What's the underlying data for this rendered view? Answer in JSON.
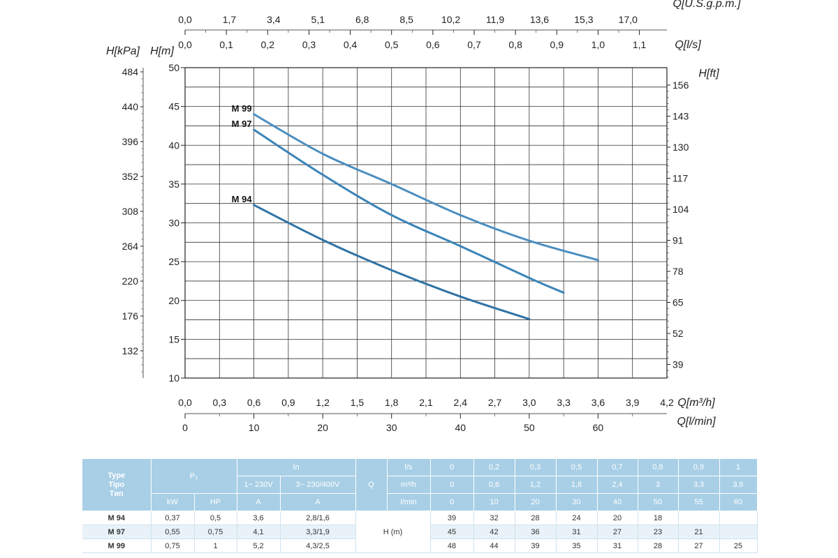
{
  "chart_data": {
    "type": "line",
    "title": "",
    "series": [
      {
        "name": "M 99",
        "x": [
          0.6,
          1.2,
          1.8,
          2.4,
          3.0,
          3.6
        ],
        "values": [
          44.0,
          38.9,
          35.0,
          31.0,
          27.7,
          25.2
        ]
      },
      {
        "name": "M 97",
        "x": [
          0.6,
          1.2,
          1.8,
          2.4,
          3.0,
          3.3
        ],
        "values": [
          42.0,
          36.2,
          31.0,
          27.0,
          22.9,
          21.0
        ]
      },
      {
        "name": "M 94",
        "x": [
          0.6,
          1.2,
          1.8,
          2.4,
          3.0
        ],
        "values": [
          32.3,
          27.8,
          23.9,
          20.5,
          17.6
        ]
      }
    ],
    "xlim": [
      0,
      4.2
    ],
    "ylim": [
      10,
      50
    ],
    "axes": {
      "bottom_m3h": {
        "label": "Q[m³/h]",
        "ticks": [
          "0,0",
          "0,3",
          "0,6",
          "0,9",
          "1,2",
          "1,5",
          "1,8",
          "2,1",
          "2,4",
          "2,7",
          "3,0",
          "3,3",
          "3,6",
          "3,9",
          "4,2"
        ]
      },
      "bottom_lmin": {
        "label": "Q[l/min]",
        "ticks": [
          "0",
          "10",
          "20",
          "30",
          "40",
          "50",
          "60"
        ],
        "values": [
          0,
          10,
          20,
          30,
          40,
          50,
          60
        ]
      },
      "top_usgpm": {
        "label": "Q[U.S.g.p.m.]",
        "ticks": [
          "0,0",
          "1,7",
          "3,4",
          "5,1",
          "6,8",
          "8,5",
          "10,2",
          "11,9",
          "13,6",
          "15,3",
          "17,0"
        ]
      },
      "top_ls": {
        "label": "Q[l/s]",
        "ticks": [
          "0,0",
          "0,1",
          "0,2",
          "0,3",
          "0,4",
          "0,5",
          "0,6",
          "0,7",
          "0,8",
          "0,9",
          "1,0",
          "1,1"
        ]
      },
      "left_m": {
        "label": "H[m]",
        "ticks": [
          "10",
          "15",
          "20",
          "25",
          "30",
          "35",
          "40",
          "45",
          "50"
        ],
        "values": [
          10,
          15,
          20,
          25,
          30,
          35,
          40,
          45,
          50
        ]
      },
      "left_kpa": {
        "label": "H[kPa]",
        "ticks": [
          "484",
          "440",
          "396",
          "352",
          "308",
          "264",
          "220",
          "176",
          "132"
        ]
      },
      "right_ft": {
        "label": "H[ft]",
        "ticks": [
          "156",
          "143",
          "130",
          "117",
          "104",
          "91",
          "78",
          "65",
          "52",
          "39"
        ]
      }
    },
    "grid": true,
    "line_color": [
      "#4a8ec0",
      "#3a84b8",
      "#2f73a6"
    ]
  },
  "table": {
    "head": {
      "type": [
        "Type",
        "Tipo",
        "Тип"
      ],
      "p2": "P₂",
      "in": "In",
      "in_1": "1~ 230V",
      "in_3": "3~ 230/400V",
      "q": "Q",
      "kw": "kW",
      "hp": "HP",
      "a1": "A",
      "a3": "A",
      "ls": "l/s",
      "m3h": "m³/h",
      "lmin": "l/min",
      "ls_vals": [
        "0",
        "0,2",
        "0,3",
        "0,5",
        "0,7",
        "0,8",
        "0,9",
        "1"
      ],
      "m3h_vals": [
        "0",
        "0,6",
        "1,2",
        "1,8",
        "2,4",
        "3",
        "3,3",
        "3,6"
      ],
      "lmin_vals": [
        "0",
        "10",
        "20",
        "30",
        "40",
        "50",
        "55",
        "60"
      ]
    },
    "h_label": "H (m)",
    "rows": [
      {
        "type": "M 94",
        "kw": "0,37",
        "hp": "0,5",
        "a1": "3,6",
        "a3": "2,8/1,6",
        "h": [
          "39",
          "32",
          "28",
          "24",
          "20",
          "18",
          "",
          ""
        ]
      },
      {
        "type": "M 97",
        "kw": "0,55",
        "hp": "0,75",
        "a1": "4,1",
        "a3": "3,3/1,9",
        "h": [
          "45",
          "42",
          "36",
          "31",
          "27",
          "23",
          "21",
          ""
        ]
      },
      {
        "type": "M 99",
        "kw": "0,75",
        "hp": "1",
        "a1": "5,2",
        "a3": "4,3/2,5",
        "h": [
          "48",
          "44",
          "39",
          "35",
          "31",
          "28",
          "27",
          "25"
        ]
      }
    ]
  }
}
